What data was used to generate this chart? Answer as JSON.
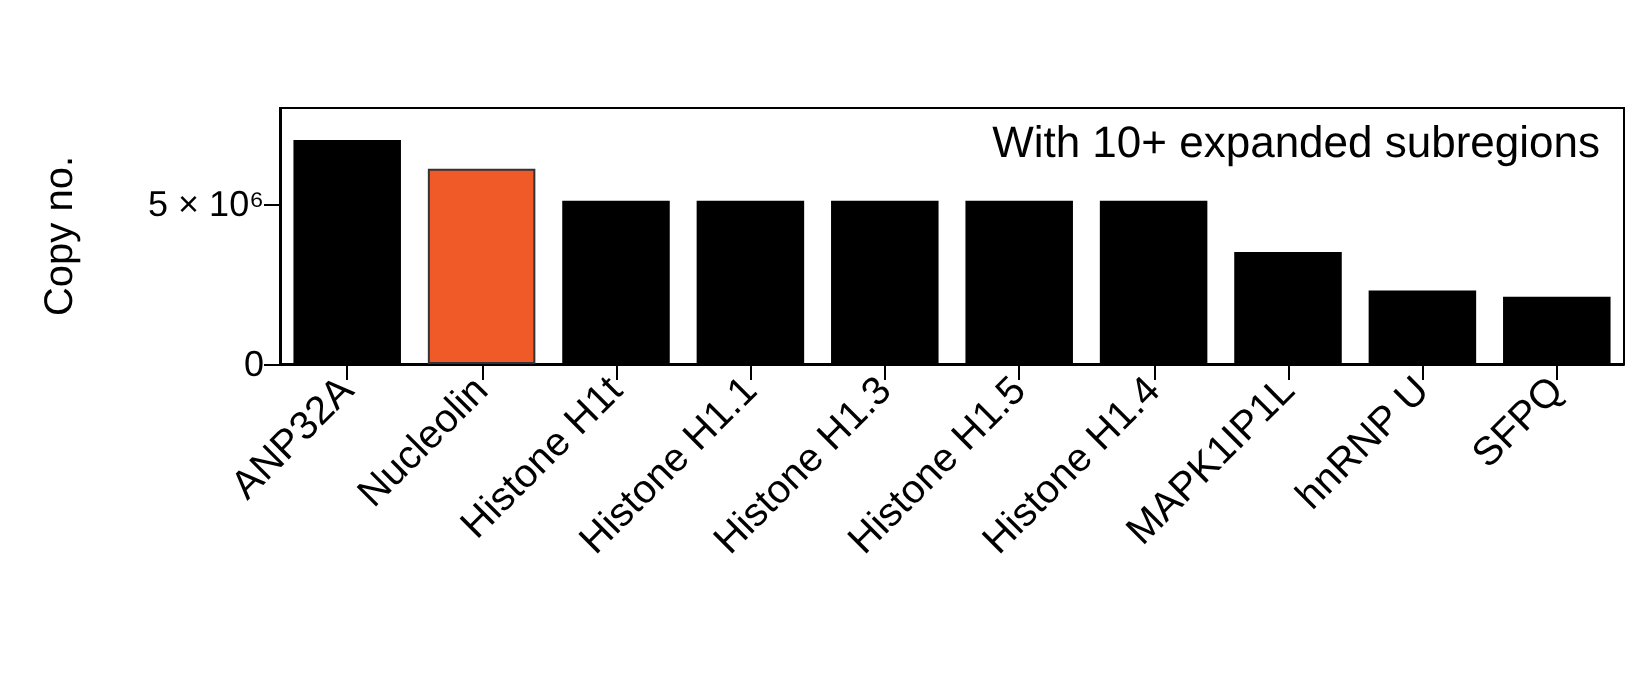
{
  "chart_data": {
    "type": "bar",
    "ylabel": "Copy no.",
    "annotations": [
      "With 10+ expanded subregions"
    ],
    "categories": [
      "ANP32A",
      "Nucleolin",
      "Histone H1t",
      "Histone H1.1",
      "Histone H1.3",
      "Histone H1.5",
      "Histone H1.4",
      "MAPK1IP1L",
      "hnRNP U",
      "SFPQ"
    ],
    "values": [
      7000000,
      6100000,
      5100000,
      5100000,
      5100000,
      5100000,
      5100000,
      3500000,
      2300000,
      2100000
    ],
    "colors": [
      "#000000",
      "#f05a28",
      "#000000",
      "#000000",
      "#000000",
      "#000000",
      "#000000",
      "#000000",
      "#000000",
      "#000000"
    ],
    "ylim": [
      0,
      8000000
    ],
    "yticks": [
      0,
      {
        "value": 5000000,
        "label": "5 × 10⁶"
      }
    ],
    "grid": false
  }
}
